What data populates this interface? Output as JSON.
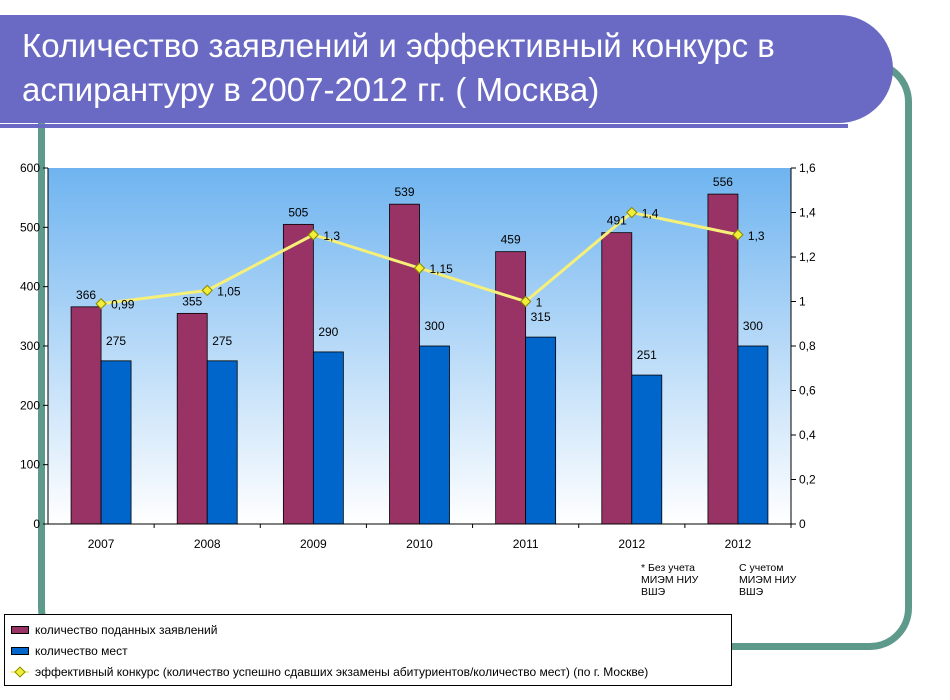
{
  "title": "Количество заявлений и эффективный конкурс в аспирантуру в 2007-2012 гг. ( Москва)",
  "chart_data": {
    "type": "bar",
    "categories": [
      "2007",
      "2008",
      "2009",
      "2010",
      "2011",
      "2012",
      "2012"
    ],
    "series": [
      {
        "name": "количество поданных заявлений",
        "values": [
          366,
          355,
          505,
          539,
          459,
          491,
          556
        ],
        "color": "#993366",
        "axis": "left",
        "kind": "bar"
      },
      {
        "name": "количество мест",
        "values": [
          275,
          275,
          290,
          300,
          315,
          251,
          300
        ],
        "color": "#0066cc",
        "axis": "left",
        "kind": "bar"
      },
      {
        "name": "эффективный конкурс (количество успешно сдавших экзамены абитуриентов/количество мест) (по г. Москве)",
        "values": [
          0.99,
          1.05,
          1.3,
          1.15,
          1.0,
          1.4,
          1.3
        ],
        "value_labels": [
          "0,99",
          "1,05",
          "1,3",
          "1,15",
          "1",
          "1,4",
          "1,3"
        ],
        "color": "#f7f078",
        "axis": "right",
        "kind": "line"
      }
    ],
    "y_left": {
      "min": 0,
      "max": 600,
      "ticks": [
        "0",
        "100",
        "200",
        "300",
        "400",
        "500",
        "600"
      ]
    },
    "y_right": {
      "min": 0,
      "max": 1.6,
      "ticks": [
        "0",
        "0,2",
        "0,4",
        "0,6",
        "0,8",
        "1",
        "1,2",
        "1,4",
        "1,6"
      ]
    },
    "grid": false,
    "legend_position": "bottom-left",
    "plot_background": [
      "#6fb4f0",
      "#ffffff"
    ]
  },
  "notes": [
    "* Без учета\nМИЭМ НИУ\nВШЭ",
    "С учетом\nМИЭМ НИУ\nВШЭ"
  ]
}
